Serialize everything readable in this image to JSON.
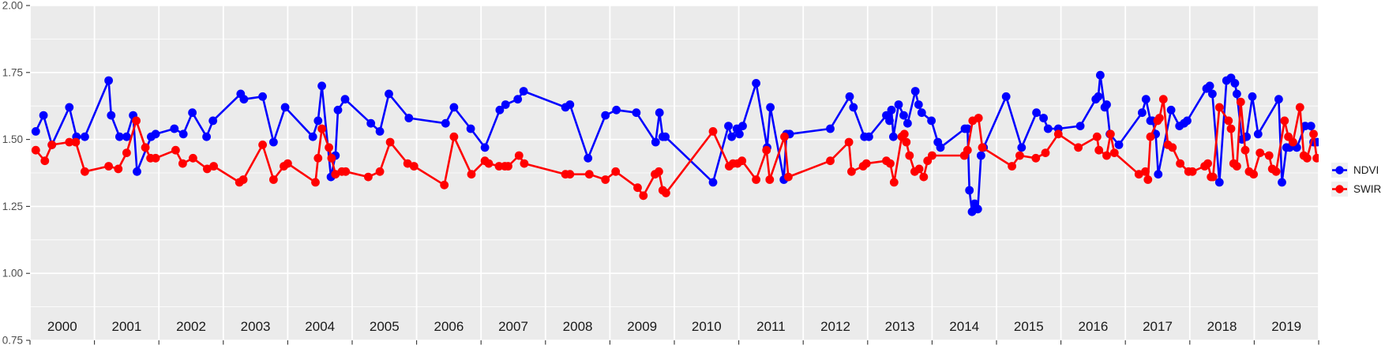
{
  "figure": {
    "background": "#FFFFFF",
    "panel_background": "#EBEBEB",
    "grid_color": "#FFFFFF",
    "axis_text_color": "#4D4D4D",
    "tick_color": "#333333",
    "year_label_color": "#1A1A1A"
  },
  "legend": {
    "items": [
      {
        "label": "NDVI",
        "color": "#0000FF"
      },
      {
        "label": "SWIR",
        "color": "#FF0000"
      }
    ]
  },
  "chart_data": {
    "type": "line",
    "title": "",
    "xlabel": "",
    "ylabel": "",
    "xlim": [
      2000,
      2020
    ],
    "ylim": [
      0.75,
      2.0
    ],
    "grid": "white major+minor horizontal, white major vertical per year, on gray panel",
    "legend_position": "right-center",
    "y_ticks": {
      "values": [
        0.75,
        1.0,
        1.25,
        1.5,
        1.75,
        2.0
      ],
      "labels": [
        "0.75",
        "1.00",
        "1.25",
        "1.50",
        "1.75",
        "2.00"
      ]
    },
    "y_minor": [
      0.875,
      1.125,
      1.375,
      1.625,
      1.875
    ],
    "x_tick_years": [
      2000,
      2001,
      2002,
      2003,
      2004,
      2005,
      2006,
      2007,
      2008,
      2009,
      2010,
      2011,
      2012,
      2013,
      2014,
      2015,
      2016,
      2017,
      2018,
      2019,
      2020
    ],
    "x_year_labels": [
      "2000",
      "2001",
      "2002",
      "2003",
      "2004",
      "2005",
      "2006",
      "2007",
      "2008",
      "2009",
      "2010",
      "2011",
      "2012",
      "2013",
      "2014",
      "2015",
      "2016",
      "2017",
      "2018",
      "2019"
    ],
    "marker_radius": 5.4,
    "line_width": 2.6,
    "series": [
      {
        "name": "NDVI",
        "color": "#0000FF",
        "points": [
          [
            2000.09,
            1.53
          ],
          [
            2000.21,
            1.59
          ],
          [
            2000.34,
            1.48
          ],
          [
            2000.61,
            1.62
          ],
          [
            2000.72,
            1.51
          ],
          [
            2000.85,
            1.51
          ],
          [
            2001.22,
            1.72
          ],
          [
            2001.26,
            1.59
          ],
          [
            2001.39,
            1.51
          ],
          [
            2001.5,
            1.51
          ],
          [
            2001.6,
            1.59
          ],
          [
            2001.66,
            1.38
          ],
          [
            2001.88,
            1.51
          ],
          [
            2001.95,
            1.52
          ],
          [
            2002.24,
            1.54
          ],
          [
            2002.38,
            1.52
          ],
          [
            2002.52,
            1.6
          ],
          [
            2002.74,
            1.51
          ],
          [
            2002.84,
            1.57
          ],
          [
            2003.27,
            1.67
          ],
          [
            2003.32,
            1.65
          ],
          [
            2003.61,
            1.66
          ],
          [
            2003.78,
            1.49
          ],
          [
            2003.96,
            1.62
          ],
          [
            2004.39,
            1.51
          ],
          [
            2004.47,
            1.57
          ],
          [
            2004.53,
            1.7
          ],
          [
            2004.67,
            1.36
          ],
          [
            2004.74,
            1.44
          ],
          [
            2004.78,
            1.61
          ],
          [
            2004.89,
            1.65
          ],
          [
            2005.29,
            1.56
          ],
          [
            2005.43,
            1.53
          ],
          [
            2005.57,
            1.67
          ],
          [
            2005.88,
            1.58
          ],
          [
            2006.45,
            1.56
          ],
          [
            2006.58,
            1.62
          ],
          [
            2006.84,
            1.54
          ],
          [
            2007.06,
            1.47
          ],
          [
            2007.29,
            1.61
          ],
          [
            2007.38,
            1.63
          ],
          [
            2007.57,
            1.65
          ],
          [
            2007.66,
            1.68
          ],
          [
            2008.31,
            1.62
          ],
          [
            2008.38,
            1.63
          ],
          [
            2008.66,
            1.43
          ],
          [
            2008.93,
            1.59
          ],
          [
            2009.1,
            1.61
          ],
          [
            2009.41,
            1.6
          ],
          [
            2009.71,
            1.49
          ],
          [
            2009.77,
            1.6
          ],
          [
            2009.82,
            1.51
          ],
          [
            2009.86,
            1.51
          ],
          [
            2010.6,
            1.34
          ],
          [
            2010.84,
            1.55
          ],
          [
            2010.89,
            1.51
          ],
          [
            2010.97,
            1.54
          ],
          [
            2011.01,
            1.52
          ],
          [
            2011.06,
            1.55
          ],
          [
            2011.27,
            1.71
          ],
          [
            2011.44,
            1.47
          ],
          [
            2011.49,
            1.62
          ],
          [
            2011.7,
            1.35
          ],
          [
            2011.74,
            1.52
          ],
          [
            2011.79,
            1.52
          ],
          [
            2012.42,
            1.54
          ],
          [
            2012.72,
            1.66
          ],
          [
            2012.78,
            1.62
          ],
          [
            2012.95,
            1.51
          ],
          [
            2013.02,
            1.51
          ],
          [
            2013.29,
            1.59
          ],
          [
            2013.34,
            1.57
          ],
          [
            2013.37,
            1.61
          ],
          [
            2013.4,
            1.51
          ],
          [
            2013.48,
            1.63
          ],
          [
            2013.56,
            1.59
          ],
          [
            2013.62,
            1.56
          ],
          [
            2013.74,
            1.68
          ],
          [
            2013.79,
            1.63
          ],
          [
            2013.84,
            1.6
          ],
          [
            2013.99,
            1.57
          ],
          [
            2014.09,
            1.49
          ],
          [
            2014.13,
            1.47
          ],
          [
            2014.51,
            1.54
          ],
          [
            2014.55,
            1.54
          ],
          [
            2014.58,
            1.31
          ],
          [
            2014.62,
            1.23
          ],
          [
            2014.66,
            1.26
          ],
          [
            2014.71,
            1.24
          ],
          [
            2014.76,
            1.44
          ],
          [
            2014.8,
            1.47
          ],
          [
            2015.15,
            1.66
          ],
          [
            2015.39,
            1.47
          ],
          [
            2015.62,
            1.6
          ],
          [
            2015.73,
            1.58
          ],
          [
            2015.8,
            1.54
          ],
          [
            2015.96,
            1.54
          ],
          [
            2016.3,
            1.55
          ],
          [
            2016.54,
            1.65
          ],
          [
            2016.58,
            1.66
          ],
          [
            2016.61,
            1.74
          ],
          [
            2016.68,
            1.62
          ],
          [
            2016.71,
            1.63
          ],
          [
            2016.76,
            1.52
          ],
          [
            2016.9,
            1.48
          ],
          [
            2017.26,
            1.6
          ],
          [
            2017.32,
            1.65
          ],
          [
            2017.39,
            1.57
          ],
          [
            2017.42,
            1.57
          ],
          [
            2017.47,
            1.52
          ],
          [
            2017.51,
            1.37
          ],
          [
            2017.71,
            1.61
          ],
          [
            2017.84,
            1.55
          ],
          [
            2017.91,
            1.56
          ],
          [
            2017.96,
            1.57
          ],
          [
            2018.26,
            1.69
          ],
          [
            2018.31,
            1.7
          ],
          [
            2018.35,
            1.67
          ],
          [
            2018.46,
            1.34
          ],
          [
            2018.57,
            1.72
          ],
          [
            2018.64,
            1.73
          ],
          [
            2018.7,
            1.71
          ],
          [
            2018.73,
            1.67
          ],
          [
            2018.81,
            1.5
          ],
          [
            2018.88,
            1.51
          ],
          [
            2018.97,
            1.66
          ],
          [
            2019.06,
            1.52
          ],
          [
            2019.38,
            1.65
          ],
          [
            2019.43,
            1.34
          ],
          [
            2019.5,
            1.47
          ],
          [
            2019.55,
            1.47
          ],
          [
            2019.66,
            1.47
          ],
          [
            2019.79,
            1.55
          ],
          [
            2019.88,
            1.55
          ],
          [
            2019.92,
            1.49
          ],
          [
            2019.98,
            1.49
          ]
        ]
      },
      {
        "name": "SWIR",
        "color": "#FF0000",
        "points": [
          [
            2000.09,
            1.46
          ],
          [
            2000.23,
            1.42
          ],
          [
            2000.34,
            1.48
          ],
          [
            2000.61,
            1.49
          ],
          [
            2000.71,
            1.49
          ],
          [
            2000.85,
            1.38
          ],
          [
            2001.22,
            1.4
          ],
          [
            2001.37,
            1.39
          ],
          [
            2001.5,
            1.45
          ],
          [
            2001.65,
            1.57
          ],
          [
            2001.79,
            1.47
          ],
          [
            2001.87,
            1.43
          ],
          [
            2001.95,
            1.43
          ],
          [
            2002.26,
            1.46
          ],
          [
            2002.37,
            1.41
          ],
          [
            2002.53,
            1.43
          ],
          [
            2002.75,
            1.39
          ],
          [
            2002.85,
            1.4
          ],
          [
            2003.25,
            1.34
          ],
          [
            2003.31,
            1.35
          ],
          [
            2003.61,
            1.48
          ],
          [
            2003.78,
            1.35
          ],
          [
            2003.94,
            1.4
          ],
          [
            2004.0,
            1.41
          ],
          [
            2004.43,
            1.34
          ],
          [
            2004.47,
            1.43
          ],
          [
            2004.53,
            1.54
          ],
          [
            2004.64,
            1.47
          ],
          [
            2004.68,
            1.43
          ],
          [
            2004.74,
            1.37
          ],
          [
            2004.84,
            1.38
          ],
          [
            2004.9,
            1.38
          ],
          [
            2005.25,
            1.36
          ],
          [
            2005.43,
            1.38
          ],
          [
            2005.59,
            1.49
          ],
          [
            2005.86,
            1.41
          ],
          [
            2005.96,
            1.4
          ],
          [
            2006.43,
            1.33
          ],
          [
            2006.58,
            1.51
          ],
          [
            2006.85,
            1.37
          ],
          [
            2007.06,
            1.42
          ],
          [
            2007.12,
            1.41
          ],
          [
            2007.28,
            1.4
          ],
          [
            2007.37,
            1.4
          ],
          [
            2007.42,
            1.4
          ],
          [
            2007.59,
            1.44
          ],
          [
            2007.67,
            1.41
          ],
          [
            2008.31,
            1.37
          ],
          [
            2008.38,
            1.37
          ],
          [
            2008.68,
            1.37
          ],
          [
            2008.93,
            1.35
          ],
          [
            2009.09,
            1.38
          ],
          [
            2009.43,
            1.32
          ],
          [
            2009.52,
            1.29
          ],
          [
            2009.7,
            1.37
          ],
          [
            2009.76,
            1.38
          ],
          [
            2009.82,
            1.31
          ],
          [
            2009.87,
            1.3
          ],
          [
            2010.6,
            1.53
          ],
          [
            2010.85,
            1.4
          ],
          [
            2010.91,
            1.41
          ],
          [
            2010.98,
            1.41
          ],
          [
            2011.05,
            1.42
          ],
          [
            2011.27,
            1.35
          ],
          [
            2011.43,
            1.46
          ],
          [
            2011.48,
            1.35
          ],
          [
            2011.71,
            1.51
          ],
          [
            2011.77,
            1.36
          ],
          [
            2012.42,
            1.42
          ],
          [
            2012.71,
            1.49
          ],
          [
            2012.75,
            1.38
          ],
          [
            2012.93,
            1.4
          ],
          [
            2012.98,
            1.41
          ],
          [
            2013.29,
            1.42
          ],
          [
            2013.35,
            1.41
          ],
          [
            2013.41,
            1.34
          ],
          [
            2013.53,
            1.51
          ],
          [
            2013.57,
            1.52
          ],
          [
            2013.6,
            1.49
          ],
          [
            2013.65,
            1.44
          ],
          [
            2013.73,
            1.38
          ],
          [
            2013.8,
            1.39
          ],
          [
            2013.87,
            1.36
          ],
          [
            2013.93,
            1.42
          ],
          [
            2014.0,
            1.44
          ],
          [
            2014.5,
            1.44
          ],
          [
            2014.55,
            1.46
          ],
          [
            2014.63,
            1.57
          ],
          [
            2014.72,
            1.58
          ],
          [
            2014.78,
            1.47
          ],
          [
            2015.24,
            1.4
          ],
          [
            2015.36,
            1.44
          ],
          [
            2015.61,
            1.43
          ],
          [
            2015.76,
            1.45
          ],
          [
            2015.96,
            1.52
          ],
          [
            2016.27,
            1.47
          ],
          [
            2016.56,
            1.51
          ],
          [
            2016.59,
            1.46
          ],
          [
            2016.71,
            1.44
          ],
          [
            2016.77,
            1.52
          ],
          [
            2016.83,
            1.45
          ],
          [
            2017.21,
            1.37
          ],
          [
            2017.31,
            1.38
          ],
          [
            2017.35,
            1.35
          ],
          [
            2017.39,
            1.51
          ],
          [
            2017.5,
            1.57
          ],
          [
            2017.53,
            1.58
          ],
          [
            2017.59,
            1.65
          ],
          [
            2017.66,
            1.48
          ],
          [
            2017.73,
            1.47
          ],
          [
            2017.85,
            1.41
          ],
          [
            2017.98,
            1.38
          ],
          [
            2018.04,
            1.38
          ],
          [
            2018.23,
            1.4
          ],
          [
            2018.28,
            1.41
          ],
          [
            2018.33,
            1.36
          ],
          [
            2018.36,
            1.36
          ],
          [
            2018.46,
            1.62
          ],
          [
            2018.6,
            1.57
          ],
          [
            2018.64,
            1.54
          ],
          [
            2018.68,
            1.41
          ],
          [
            2018.73,
            1.4
          ],
          [
            2018.79,
            1.64
          ],
          [
            2018.86,
            1.46
          ],
          [
            2018.92,
            1.38
          ],
          [
            2018.99,
            1.37
          ],
          [
            2019.09,
            1.45
          ],
          [
            2019.23,
            1.44
          ],
          [
            2019.28,
            1.39
          ],
          [
            2019.34,
            1.38
          ],
          [
            2019.47,
            1.57
          ],
          [
            2019.53,
            1.51
          ],
          [
            2019.6,
            1.49
          ],
          [
            2019.71,
            1.62
          ],
          [
            2019.77,
            1.44
          ],
          [
            2019.82,
            1.43
          ],
          [
            2019.92,
            1.52
          ],
          [
            2019.97,
            1.43
          ]
        ]
      }
    ]
  }
}
